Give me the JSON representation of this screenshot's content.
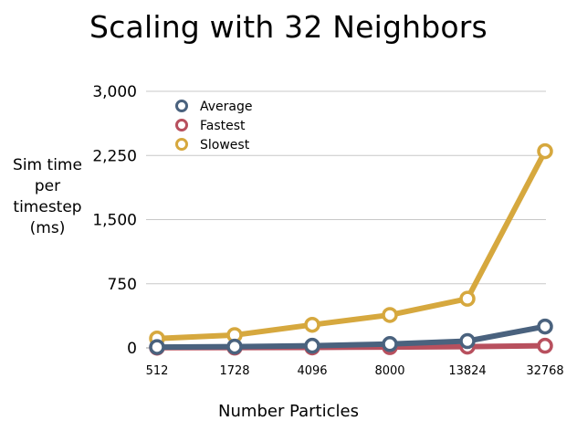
{
  "chart_data": {
    "type": "line",
    "title": "Scaling with 32 Neighbors",
    "xlabel": "Number Particles",
    "ylabel": "Sim time\nper\ntimestep\n(ms)",
    "categories": [
      "512",
      "1728",
      "4096",
      "8000",
      "13824",
      "32768"
    ],
    "yticks": [
      "0",
      "750",
      "1,500",
      "2,250",
      "3,000"
    ],
    "ylim": [
      0,
      3000
    ],
    "grid": true,
    "legend_position": "top-left",
    "series": [
      {
        "name": "Average",
        "color": "#4a627e",
        "values": [
          10,
          15,
          25,
          45,
          80,
          250
        ]
      },
      {
        "name": "Fastest",
        "color": "#b8505e",
        "values": [
          3,
          4,
          6,
          9,
          15,
          25
        ]
      },
      {
        "name": "Slowest",
        "color": "#d6a83e",
        "values": [
          110,
          150,
          270,
          385,
          575,
          2300
        ]
      }
    ]
  }
}
